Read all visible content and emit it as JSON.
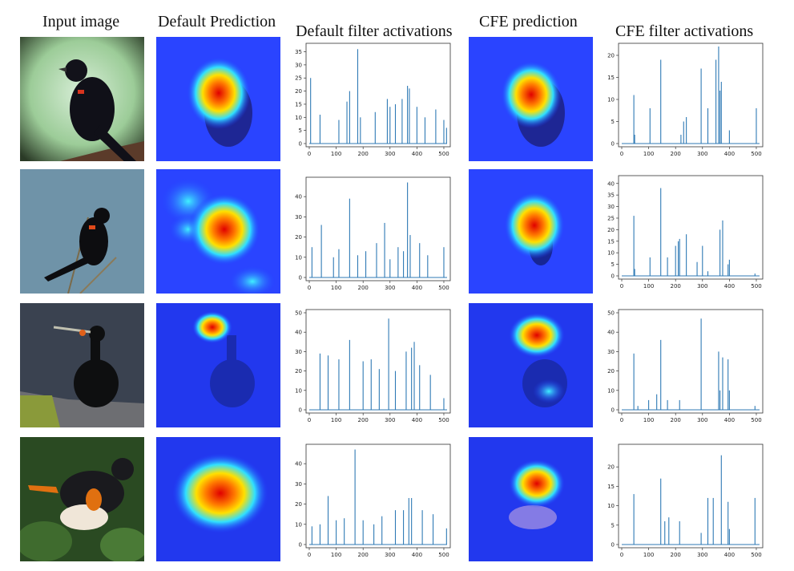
{
  "headers": {
    "input": "Input image",
    "default_pred": "Default Prediction",
    "default_act": "Default filter activations",
    "cfe_pred": "CFE prediction",
    "cfe_act": "CFE filter activations"
  },
  "colors": {
    "line": "#2f7ab5",
    "heat_bg": "#1f3bff"
  },
  "rows": [
    {
      "bird": "red-winged blackbird on post"
    },
    {
      "bird": "red-winged blackbird on branch"
    },
    {
      "bird": "cormorant on rock"
    },
    {
      "bird": "american redstart on leaves"
    }
  ],
  "chart_data": [
    {
      "type": "line",
      "panel": "row1-default",
      "xlim": [
        0,
        512
      ],
      "ylim": [
        0,
        37
      ],
      "xticks": [
        0,
        100,
        200,
        300,
        400,
        500
      ],
      "yticks": [
        0,
        5,
        10,
        15,
        20,
        25,
        30,
        35
      ],
      "x": [
        5,
        40,
        110,
        140,
        150,
        180,
        190,
        245,
        290,
        300,
        320,
        345,
        365,
        372,
        400,
        430,
        470,
        500,
        510
      ],
      "values": [
        25,
        11,
        9,
        16,
        20,
        36,
        10,
        12,
        17,
        14,
        15,
        17,
        22,
        21,
        14,
        10,
        13,
        9,
        6
      ]
    },
    {
      "type": "line",
      "panel": "row1-cfe",
      "xlim": [
        0,
        512
      ],
      "ylim": [
        0,
        22
      ],
      "xticks": [
        0,
        100,
        200,
        300,
        400,
        500
      ],
      "yticks": [
        0,
        5,
        10,
        15,
        20
      ],
      "x": [
        45,
        48,
        105,
        145,
        220,
        230,
        240,
        295,
        320,
        350,
        360,
        365,
        370,
        400,
        500
      ],
      "values": [
        11,
        2,
        8,
        19,
        2,
        5,
        6,
        17,
        8,
        19,
        22,
        12,
        14,
        3,
        8
      ]
    },
    {
      "type": "line",
      "panel": "row2-default",
      "xlim": [
        0,
        512
      ],
      "ylim": [
        0,
        48
      ],
      "xticks": [
        0,
        100,
        200,
        300,
        400,
        500
      ],
      "yticks": [
        0,
        10,
        20,
        30,
        40
      ],
      "x": [
        10,
        45,
        90,
        110,
        150,
        180,
        210,
        250,
        280,
        300,
        330,
        350,
        365,
        375,
        410,
        440,
        500
      ],
      "values": [
        15,
        26,
        10,
        14,
        39,
        11,
        13,
        17,
        27,
        9,
        15,
        13,
        47,
        21,
        17,
        11,
        15
      ]
    },
    {
      "type": "line",
      "panel": "row2-cfe",
      "xlim": [
        0,
        512
      ],
      "ylim": [
        0,
        42
      ],
      "xticks": [
        0,
        100,
        200,
        300,
        400,
        500
      ],
      "yticks": [
        0,
        5,
        10,
        15,
        20,
        25,
        30,
        35,
        40
      ],
      "x": [
        45,
        48,
        105,
        145,
        170,
        200,
        210,
        215,
        240,
        280,
        300,
        320,
        365,
        375,
        395,
        400,
        495
      ],
      "values": [
        26,
        3,
        8,
        38,
        8,
        13,
        15,
        16,
        18,
        6,
        13,
        2,
        20,
        24,
        5,
        7,
        1
      ]
    },
    {
      "type": "line",
      "panel": "row3-default",
      "xlim": [
        0,
        512
      ],
      "ylim": [
        0,
        50
      ],
      "xticks": [
        0,
        100,
        200,
        300,
        400,
        500
      ],
      "yticks": [
        0,
        10,
        20,
        30,
        40,
        50
      ],
      "x": [
        40,
        70,
        110,
        150,
        200,
        230,
        260,
        295,
        320,
        360,
        380,
        390,
        410,
        450,
        500
      ],
      "values": [
        29,
        28,
        26,
        36,
        25,
        26,
        21,
        47,
        20,
        30,
        32,
        35,
        23,
        18,
        6
      ]
    },
    {
      "type": "line",
      "panel": "row3-cfe",
      "xlim": [
        0,
        512
      ],
      "ylim": [
        0,
        50
      ],
      "xticks": [
        0,
        100,
        200,
        300,
        400,
        500
      ],
      "yticks": [
        0,
        10,
        20,
        30,
        40,
        50
      ],
      "x": [
        45,
        60,
        100,
        130,
        145,
        170,
        215,
        295,
        360,
        365,
        375,
        395,
        400,
        495
      ],
      "values": [
        29,
        2,
        5,
        8,
        36,
        5,
        5,
        47,
        30,
        10,
        27,
        26,
        10,
        2
      ]
    },
    {
      "type": "line",
      "panel": "row4-default",
      "xlim": [
        0,
        512
      ],
      "ylim": [
        0,
        48
      ],
      "xticks": [
        0,
        100,
        200,
        300,
        400,
        500
      ],
      "yticks": [
        0,
        10,
        20,
        30,
        40
      ],
      "x": [
        10,
        40,
        70,
        100,
        130,
        170,
        200,
        240,
        270,
        320,
        350,
        370,
        380,
        420,
        460,
        510
      ],
      "values": [
        9,
        10,
        24,
        12,
        13,
        47,
        12,
        10,
        14,
        17,
        17,
        23,
        23,
        17,
        15,
        8
      ]
    },
    {
      "type": "line",
      "panel": "row4-cfe",
      "xlim": [
        0,
        512
      ],
      "ylim": [
        0,
        25
      ],
      "xticks": [
        0,
        100,
        200,
        300,
        400,
        500
      ],
      "yticks": [
        0,
        5,
        10,
        15,
        20
      ],
      "x": [
        45,
        145,
        160,
        175,
        215,
        295,
        320,
        340,
        370,
        395,
        400,
        495
      ],
      "values": [
        13,
        17,
        6,
        7,
        6,
        3,
        12,
        12,
        23,
        11,
        4,
        12
      ]
    }
  ]
}
